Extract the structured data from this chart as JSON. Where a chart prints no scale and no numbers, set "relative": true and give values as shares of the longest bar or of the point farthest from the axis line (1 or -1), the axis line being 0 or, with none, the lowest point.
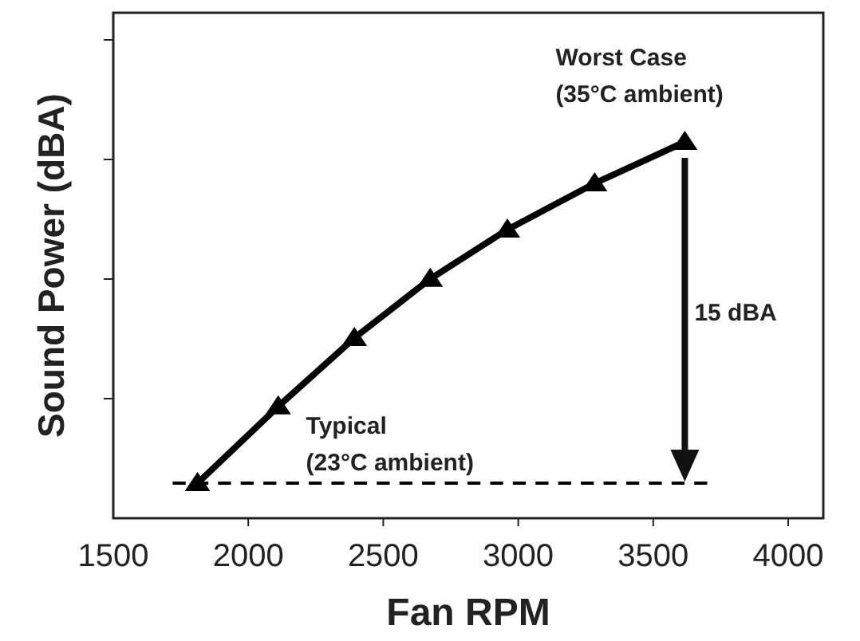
{
  "chart_data": {
    "type": "line",
    "relative": true,
    "xlabel": "Fan RPM",
    "ylabel": "Sound Power (dBA)",
    "xlim": [
      1500,
      4130
    ],
    "xticks": [
      1500,
      2000,
      2500,
      3000,
      3500,
      4000
    ],
    "series": [
      {
        "color": "#000000",
        "marker": "triangle",
        "line_style": "solid",
        "x": [
          1812,
          2111,
          2393,
          2674,
          2960,
          3283,
          3617
        ],
        "values": [
          0.093,
          0.297,
          0.479,
          0.636,
          0.767,
          0.89,
          1
        ]
      },
      {
        "color": "#000000",
        "marker": "none",
        "line_style": "dashed",
        "x": [
          1720,
          3700
        ],
        "values": [
          0.093,
          0.093
        ]
      }
    ],
    "annotations": [
      "Worst Case\n(35°C ambient)",
      "Typical\n(23°C ambient)",
      "15 dBA"
    ]
  }
}
